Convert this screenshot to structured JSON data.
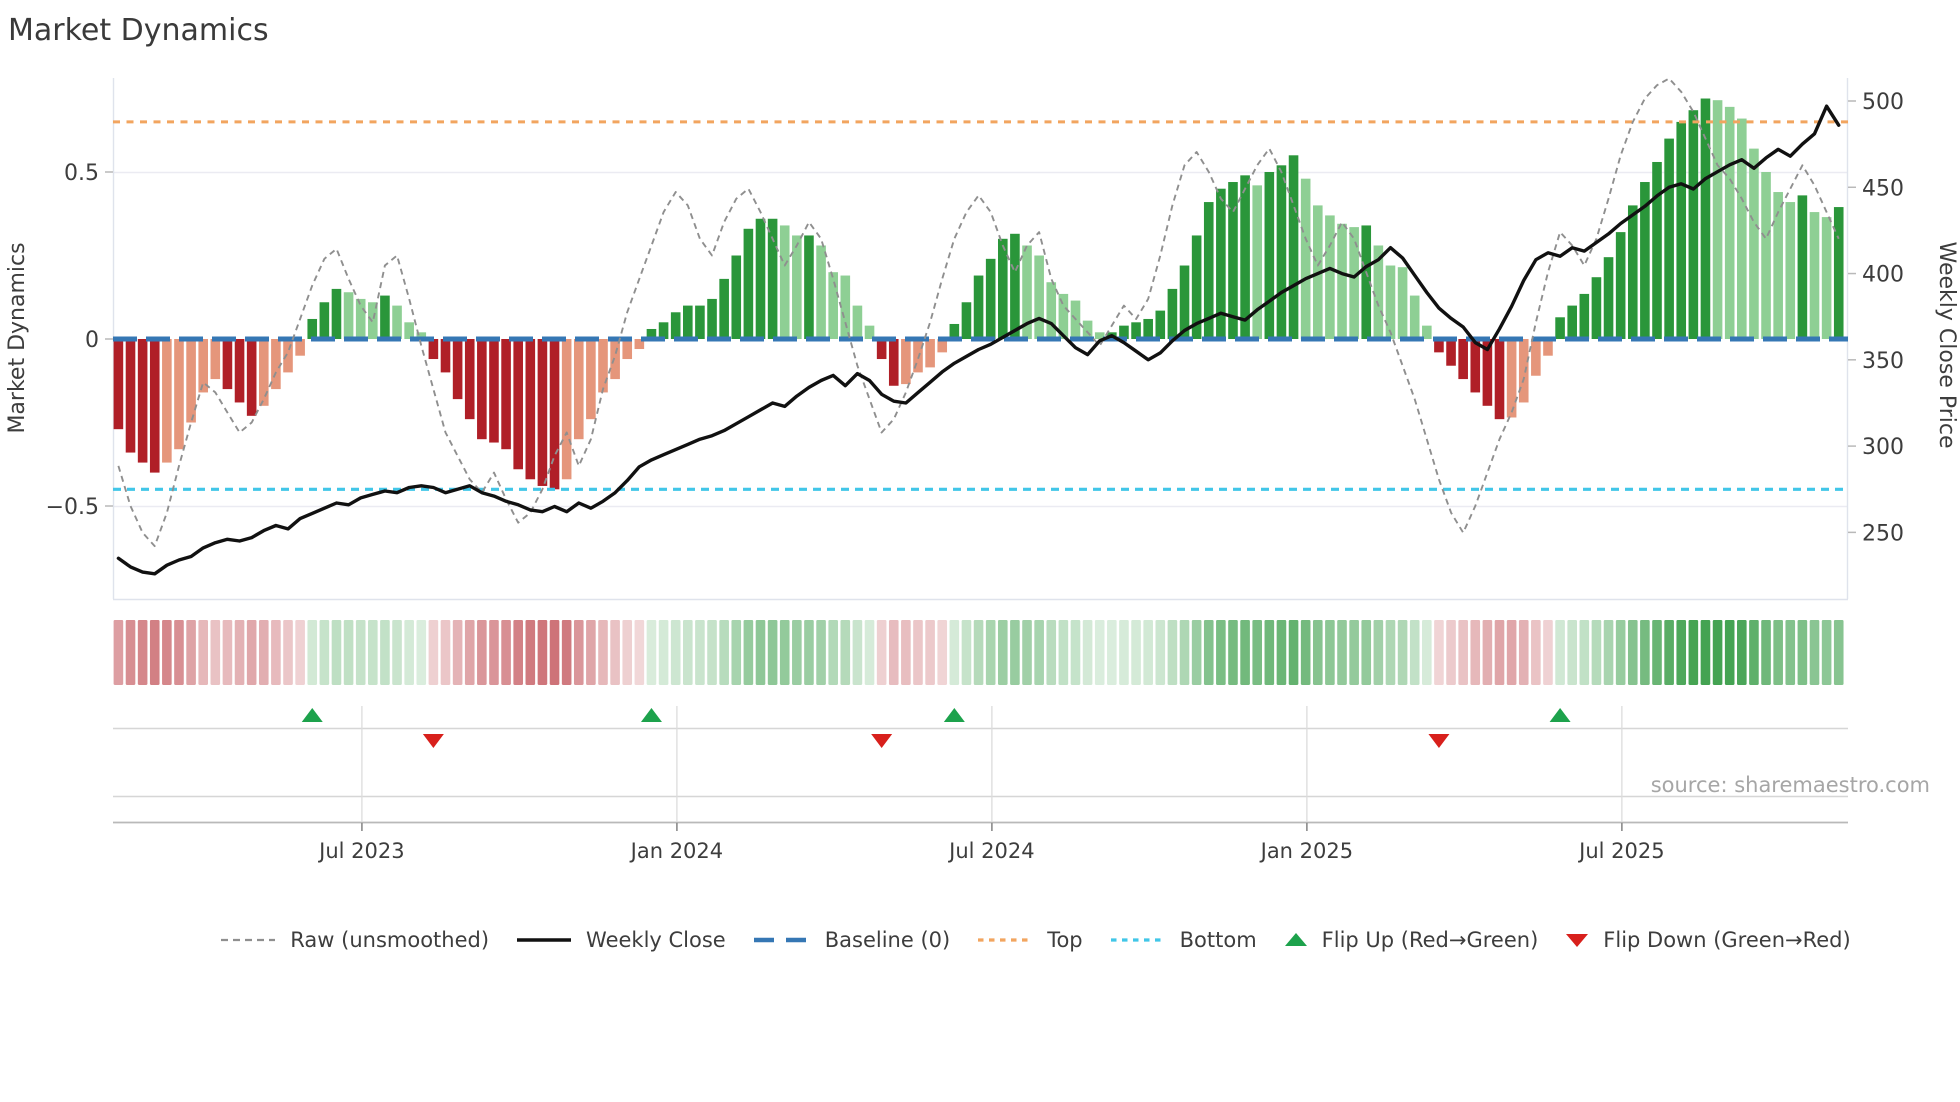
{
  "title": "Market Dynamics",
  "source": "source: sharemaestro.com",
  "left_axis": {
    "label": "Market Dynamics",
    "ticks": [
      {
        "v": 0.5,
        "label": "0.5"
      },
      {
        "v": 0,
        "label": "0"
      },
      {
        "v": -0.5,
        "label": "−0.5"
      }
    ]
  },
  "right_axis": {
    "label": "Weekly Close Price",
    "ticks": [
      {
        "v": 500,
        "label": "500"
      },
      {
        "v": 450,
        "label": "450"
      },
      {
        "v": 400,
        "label": "400"
      },
      {
        "v": 350,
        "label": "350"
      },
      {
        "v": 300,
        "label": "300"
      },
      {
        "v": 250,
        "label": "250"
      }
    ]
  },
  "legend": {
    "items": [
      {
        "key": "raw",
        "label": "Raw (unsmoothed)"
      },
      {
        "key": "close",
        "label": "Weekly Close"
      },
      {
        "key": "baseline",
        "label": "Baseline (0)"
      },
      {
        "key": "top",
        "label": "Top"
      },
      {
        "key": "bottom",
        "label": "Bottom"
      },
      {
        "key": "flipup",
        "label": "Flip Up (Red→Green)"
      },
      {
        "key": "flipdown",
        "label": "Flip Down (Green→Red)"
      }
    ]
  },
  "colors": {
    "pos_dark": "#2a963a",
    "pos_light": "#8ecf94",
    "neg_dark": "#b01f27",
    "neg_light": "#e5967b",
    "baseline": "#3577b4",
    "top": "#f2a55f",
    "bottom": "#41c6e8",
    "raw": "#8f8f8f",
    "close": "#111111",
    "flip_up": "#1da24c",
    "flip_down": "#d8201c",
    "grid": "#ebebf2",
    "spine": "#dfe3ec",
    "panel_line": "#d6d6d6",
    "axis_line": "#b9b9b9",
    "tick": "#8a8a8a",
    "text": "#3d3d3d"
  },
  "chart_data": {
    "type": "bar",
    "description": "Weekly market-dynamics oscillator bars with heatmap strip, flip markers, raw and weekly-close overlay lines",
    "weeks": 143,
    "left_ylim": [
      -0.78,
      0.78
    ],
    "right_ylim": [
      211,
      513
    ],
    "baseline": 0,
    "top_level": 0.65,
    "bottom_level": -0.45,
    "x_ticks": [
      {
        "label": "Jul 2023",
        "week": 20.1
      },
      {
        "label": "Jan 2024",
        "week": 46.1
      },
      {
        "label": "Jul 2024",
        "week": 72.1
      },
      {
        "label": "Jan 2025",
        "week": 98.1
      },
      {
        "label": "Jul 2025",
        "week": 124.1
      }
    ],
    "flip_up_weeks": [
      16,
      44,
      69,
      119
    ],
    "flip_down_weeks": [
      26,
      63,
      109
    ],
    "oscillator": [
      -0.27,
      -0.34,
      -0.37,
      -0.4,
      -0.37,
      -0.33,
      -0.25,
      -0.16,
      -0.12,
      -0.15,
      -0.19,
      -0.23,
      -0.2,
      -0.15,
      -0.1,
      -0.05,
      0.06,
      0.11,
      0.15,
      0.14,
      0.12,
      0.11,
      0.13,
      0.1,
      0.05,
      0.02,
      -0.06,
      -0.1,
      -0.18,
      -0.24,
      -0.3,
      -0.31,
      -0.33,
      -0.39,
      -0.42,
      -0.44,
      -0.45,
      -0.42,
      -0.3,
      -0.24,
      -0.16,
      -0.12,
      -0.06,
      -0.03,
      0.03,
      0.05,
      0.08,
      0.1,
      0.1,
      0.12,
      0.18,
      0.25,
      0.33,
      0.36,
      0.36,
      0.34,
      0.31,
      0.31,
      0.28,
      0.2,
      0.19,
      0.1,
      0.04,
      -0.06,
      -0.14,
      -0.135,
      -0.1,
      -0.085,
      -0.04,
      0.045,
      0.11,
      0.19,
      0.24,
      0.3,
      0.315,
      0.28,
      0.25,
      0.17,
      0.135,
      0.115,
      0.055,
      0.02,
      0.02,
      0.04,
      0.05,
      0.06,
      0.085,
      0.15,
      0.22,
      0.31,
      0.41,
      0.45,
      0.47,
      0.49,
      0.46,
      0.5,
      0.52,
      0.55,
      0.48,
      0.4,
      0.37,
      0.345,
      0.335,
      0.34,
      0.28,
      0.22,
      0.215,
      0.13,
      0.04,
      -0.04,
      -0.08,
      -0.12,
      -0.16,
      -0.2,
      -0.24,
      -0.235,
      -0.19,
      -0.11,
      -0.05,
      0.065,
      0.1,
      0.135,
      0.185,
      0.245,
      0.32,
      0.4,
      0.47,
      0.53,
      0.6,
      0.65,
      0.685,
      0.72,
      0.715,
      0.695,
      0.66,
      0.57,
      0.5,
      0.44,
      0.41,
      0.43,
      0.38,
      0.365,
      0.395
    ],
    "raw": [
      -0.38,
      -0.5,
      -0.58,
      -0.62,
      -0.52,
      -0.38,
      -0.25,
      -0.13,
      -0.16,
      -0.22,
      -0.28,
      -0.25,
      -0.18,
      -0.1,
      -0.04,
      0.06,
      0.16,
      0.24,
      0.27,
      0.18,
      0.1,
      0.05,
      0.22,
      0.25,
      0.12,
      -0.02,
      -0.15,
      -0.28,
      -0.35,
      -0.42,
      -0.46,
      -0.4,
      -0.48,
      -0.55,
      -0.52,
      -0.45,
      -0.35,
      -0.28,
      -0.38,
      -0.3,
      -0.15,
      -0.05,
      0.08,
      0.18,
      0.28,
      0.38,
      0.44,
      0.4,
      0.3,
      0.25,
      0.35,
      0.42,
      0.45,
      0.38,
      0.3,
      0.22,
      0.28,
      0.35,
      0.3,
      0.18,
      0.05,
      -0.08,
      -0.18,
      -0.28,
      -0.24,
      -0.16,
      -0.06,
      0.05,
      0.18,
      0.3,
      0.38,
      0.43,
      0.38,
      0.28,
      0.2,
      0.28,
      0.32,
      0.18,
      0.1,
      0.06,
      0.02,
      -0.02,
      0.04,
      0.1,
      0.06,
      0.12,
      0.25,
      0.4,
      0.52,
      0.56,
      0.5,
      0.42,
      0.38,
      0.45,
      0.52,
      0.57,
      0.5,
      0.4,
      0.3,
      0.22,
      0.28,
      0.35,
      0.3,
      0.2,
      0.1,
      0.02,
      -0.08,
      -0.18,
      -0.3,
      -0.42,
      -0.52,
      -0.58,
      -0.5,
      -0.4,
      -0.3,
      -0.22,
      -0.12,
      0.05,
      0.2,
      0.32,
      0.28,
      0.22,
      0.3,
      0.42,
      0.55,
      0.65,
      0.72,
      0.76,
      0.78,
      0.74,
      0.68,
      0.6,
      0.52,
      0.48,
      0.42,
      0.35,
      0.3,
      0.38,
      0.45,
      0.52,
      0.46,
      0.38,
      0.3
    ],
    "weekly_close": [
      235,
      230,
      227,
      226,
      231,
      234,
      236,
      241,
      244,
      246,
      245,
      247,
      251,
      254,
      252,
      258,
      261,
      264,
      267,
      266,
      270,
      272,
      274,
      273,
      276,
      277,
      276,
      273,
      275,
      277,
      273,
      271,
      268,
      266,
      263,
      262,
      265,
      262,
      267,
      264,
      268,
      273,
      280,
      288,
      292,
      295,
      298,
      301,
      304,
      306,
      309,
      313,
      317,
      321,
      325,
      323,
      329,
      334,
      338,
      341,
      335,
      342,
      338,
      330,
      326,
      325,
      331,
      337,
      343,
      348,
      352,
      356,
      359,
      363,
      367,
      371,
      374,
      371,
      364,
      357,
      353,
      361,
      364,
      360,
      355,
      350,
      354,
      361,
      367,
      371,
      374,
      377,
      375,
      373,
      379,
      384,
      389,
      393,
      397,
      400,
      403,
      400,
      398,
      404,
      408,
      415,
      409,
      399,
      389,
      380,
      374,
      369,
      360,
      356,
      368,
      381,
      396,
      408,
      412,
      410,
      415,
      413,
      418,
      423,
      429,
      434,
      439,
      445,
      450,
      452,
      449,
      455,
      459,
      463,
      466,
      461,
      467,
      472,
      468,
      475,
      481,
      497,
      486
    ]
  }
}
